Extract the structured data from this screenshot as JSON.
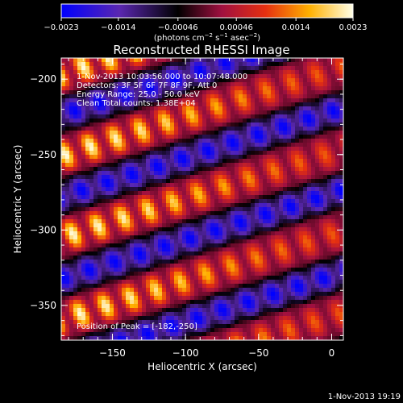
{
  "chart_data": {
    "type": "heatmap",
    "title": "Reconstructed RHESSI Image",
    "xlabel": "Heliocentric X (arcsec)",
    "ylabel": "Heliocentric Y (arcsec)",
    "xlim": [
      -185,
      8
    ],
    "ylim": [
      -373,
      -186
    ],
    "x_ticks": [
      -150,
      -100,
      -50,
      0
    ],
    "x_tick_labels": [
      "−150",
      "−100",
      "−50",
      "0"
    ],
    "y_ticks": [
      -200,
      -250,
      -300,
      -350
    ],
    "y_tick_labels": [
      "−200",
      "−250",
      "−300",
      "−350"
    ],
    "colorbar": {
      "range": [
        -0.0023,
        0.0023
      ],
      "ticks": [
        -0.0023,
        -0.0014,
        -0.00046,
        0.00046,
        0.0014,
        0.0023
      ],
      "tick_labels": [
        "−0.0023",
        "−0.0014",
        "−0.00046",
        "0.00046",
        "0.0014",
        "0.0023"
      ],
      "unit_main": "(photons cm",
      "unit_exp1": "−2",
      "unit_mid": " s",
      "unit_exp2": "−1",
      "unit_end": " asec",
      "unit_exp3": "−2",
      "unit_close": ")"
    },
    "colors": [
      "#0000ff",
      "#3b1fc8",
      "#5b2aa0",
      "#000000",
      "#a01040",
      "#e02010",
      "#ff7a00",
      "#ffd000",
      "#ffffe0"
    ],
    "fringes": {
      "orientation_deg": -17,
      "peak_spacing_arcsec": 52,
      "modulation_spacing_arcsec": 18,
      "peak_position": [
        -182,
        -250
      ]
    }
  },
  "annotations": {
    "time_range": "1-Nov-2013 10:03:56.000 to 10:07:48.000",
    "detectors": "Detectors: 3F 5F 6F 7F 8F 9F, Att 0",
    "energy": "Energy Range: 25.0 - 50.0 keV",
    "clean": "Clean     Total counts: 1.38E+04",
    "peak": "Position of Peak = [-182,-250]"
  },
  "footer_timestamp": "1-Nov-2013 19:19"
}
